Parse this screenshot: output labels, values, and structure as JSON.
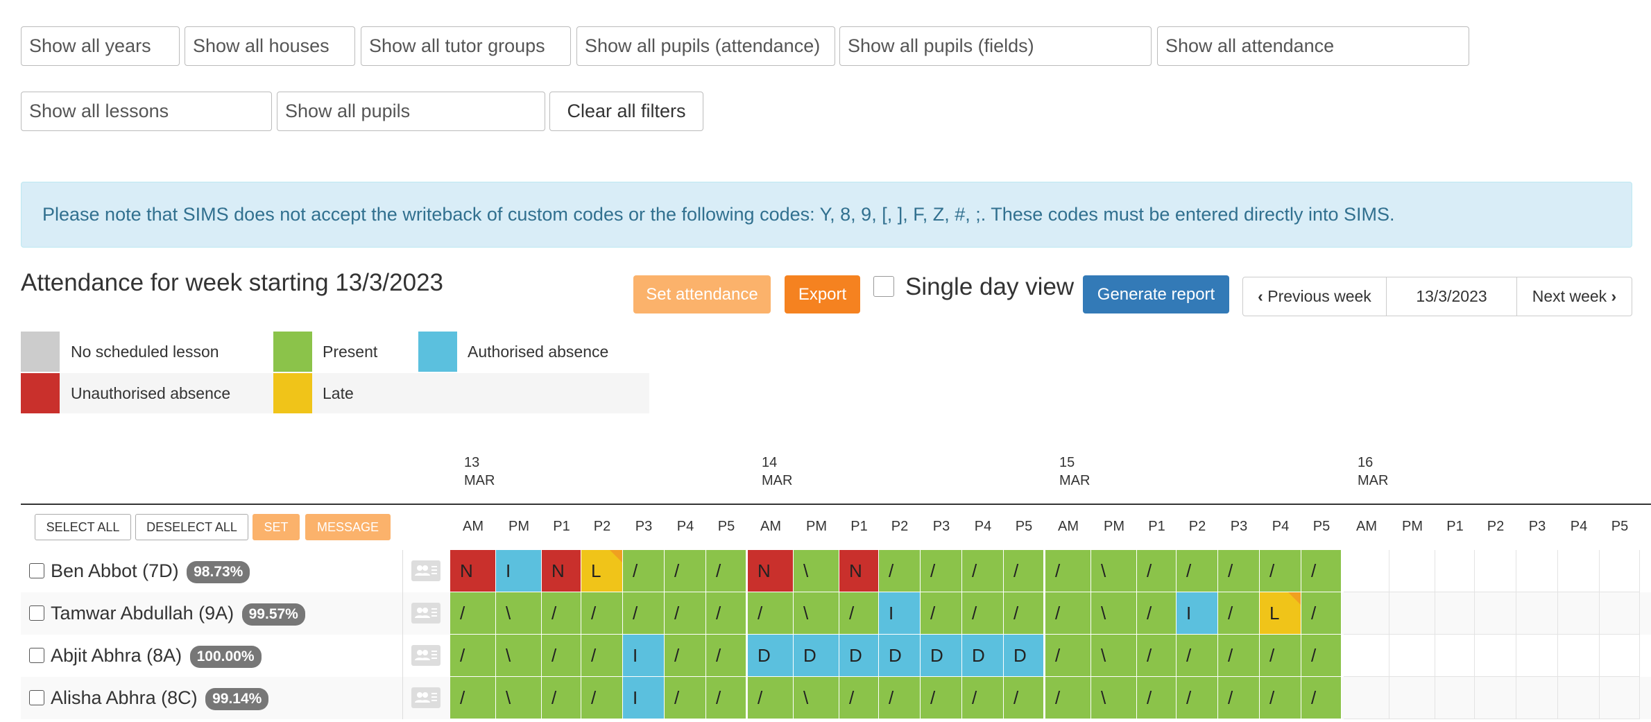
{
  "filters": {
    "years": "Show all years",
    "houses": "Show all houses",
    "tutor_groups": "Show all tutor groups",
    "pupils_attendance": "Show all pupils (attendance)",
    "pupils_fields": "Show all pupils (fields)",
    "attendance": "Show all attendance",
    "lessons": "Show all lessons",
    "pupils": "Show all pupils",
    "clear_label": "Clear all filters"
  },
  "notice": "Please note that SIMS does not accept the writeback of custom codes or the following codes: Y, 8, 9, [, ], F, Z, #, ;. These codes must be entered directly into SIMS.",
  "title": "Attendance for week starting 13/3/2023",
  "toolbar": {
    "set_attendance": "Set attendance",
    "export": "Export",
    "single_day": "Single day view",
    "generate_report": "Generate report",
    "previous_week": "Previous week",
    "week_date": "13/3/2023",
    "next_week": "Next week",
    "prev_icon": "chevron-left-icon",
    "next_icon": "chevron-right-icon"
  },
  "legend": [
    {
      "label": "No scheduled lesson",
      "color": "#cccccc"
    },
    {
      "label": "Present",
      "color": "#8bc34a"
    },
    {
      "label": "Authorised absence",
      "color": "#5bc0de"
    },
    {
      "label": "Unauthorised absence",
      "color": "#c9302c"
    },
    {
      "label": "Late",
      "color": "#f0c419"
    }
  ],
  "days": [
    {
      "day": "13",
      "month": "MAR"
    },
    {
      "day": "14",
      "month": "MAR"
    },
    {
      "day": "15",
      "month": "MAR"
    },
    {
      "day": "16",
      "month": "MAR"
    }
  ],
  "periods": [
    "AM",
    "PM",
    "P1",
    "P2",
    "P3",
    "P4",
    "P5"
  ],
  "actions": {
    "select_all": "SELECT ALL",
    "deselect_all": "DESELECT ALL",
    "set": "SET",
    "message": "MESSAGE"
  },
  "pupils": [
    {
      "name": "Ben Abbot (7D)",
      "pct": "98.73%",
      "marks": [
        "N",
        "I",
        "N",
        "L",
        "/",
        "/",
        "/",
        "N",
        "\\",
        "N",
        "/",
        "/",
        "/",
        "/",
        "/",
        "\\",
        "/",
        "/",
        "/",
        "/",
        "/"
      ],
      "types": [
        "u",
        "a",
        "u",
        "l",
        "p",
        "p",
        "p",
        "u",
        "p",
        "u",
        "p",
        "p",
        "p",
        "p",
        "p",
        "p",
        "p",
        "p",
        "p",
        "p",
        "p"
      ]
    },
    {
      "name": "Tamwar Abdullah (9A)",
      "pct": "99.57%",
      "marks": [
        "/",
        "\\",
        "/",
        "/",
        "/",
        "/",
        "/",
        "/",
        "\\",
        "/",
        "I",
        "/",
        "/",
        "/",
        "/",
        "\\",
        "/",
        "I",
        "/",
        "L",
        "/"
      ],
      "types": [
        "p",
        "p",
        "p",
        "p",
        "p",
        "p",
        "p",
        "p",
        "p",
        "p",
        "a",
        "p",
        "p",
        "p",
        "p",
        "p",
        "p",
        "a",
        "p",
        "l",
        "p"
      ]
    },
    {
      "name": "Abjit Abhra (8A)",
      "pct": "100.00%",
      "marks": [
        "/",
        "\\",
        "/",
        "/",
        "I",
        "/",
        "/",
        "D",
        "D",
        "D",
        "D",
        "D",
        "D",
        "D",
        "/",
        "\\",
        "/",
        "/",
        "/",
        "/",
        "/"
      ],
      "types": [
        "p",
        "p",
        "p",
        "p",
        "a",
        "p",
        "p",
        "a",
        "a",
        "a",
        "a",
        "a",
        "a",
        "a",
        "p",
        "p",
        "p",
        "p",
        "p",
        "p",
        "p"
      ]
    },
    {
      "name": "Alisha Abhra (8C)",
      "pct": "99.14%",
      "marks": [
        "/",
        "\\",
        "/",
        "/",
        "I",
        "/",
        "/",
        "/",
        "\\",
        "/",
        "/",
        "/",
        "/",
        "/",
        "/",
        "\\",
        "/",
        "/",
        "/",
        "/",
        "/"
      ],
      "types": [
        "p",
        "p",
        "p",
        "p",
        "a",
        "p",
        "p",
        "p",
        "p",
        "p",
        "p",
        "p",
        "p",
        "p",
        "p",
        "p",
        "p",
        "p",
        "p",
        "p",
        "p"
      ]
    }
  ]
}
